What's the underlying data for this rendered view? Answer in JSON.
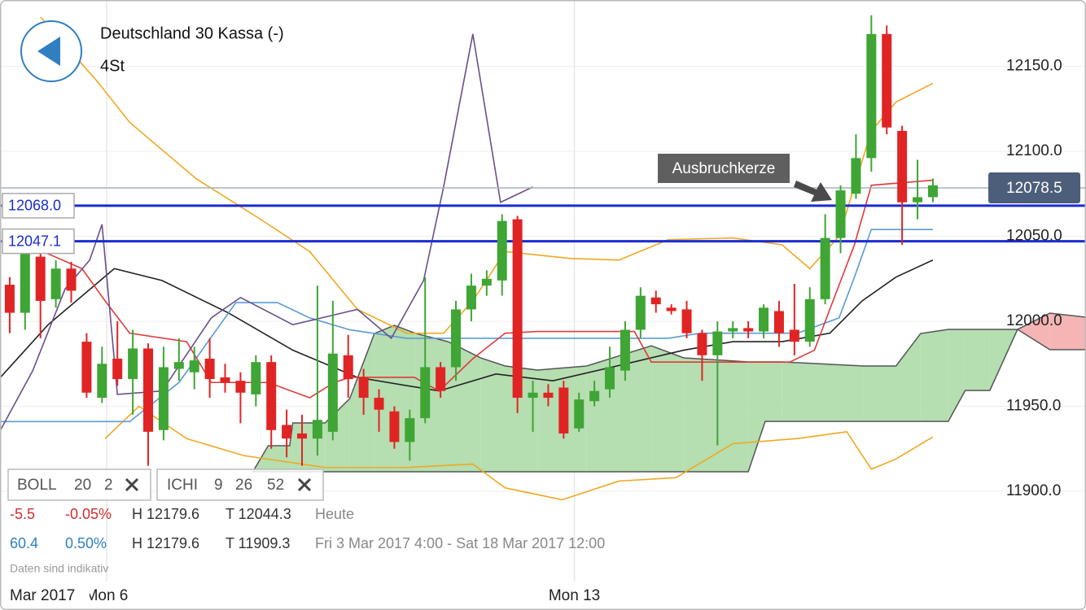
{
  "header": {
    "title": "Deutschland 30 Kassa (-)",
    "interval": "4St"
  },
  "chart_data": {
    "type": "candlestick",
    "up_color": "#3fa535",
    "down_color": "#e02424",
    "xlim": [
      -0.63,
      69.95
    ],
    "ylim": [
      11846.9,
      12189
    ],
    "grid": true,
    "yticks": [
      {
        "value": 11900,
        "label": "11900.0"
      },
      {
        "value": 11950,
        "label": "11950.0"
      },
      {
        "value": 12000,
        "label": "12000.0"
      },
      {
        "value": 12050,
        "label": "12050.0"
      },
      {
        "value": 12100,
        "label": "12100.0"
      },
      {
        "value": 12150,
        "label": "12150.0"
      }
    ],
    "xticks": [
      {
        "value": 6.3,
        "label": "Mon 6"
      },
      {
        "value": 36.7,
        "label": "Mon 13"
      }
    ],
    "open": [
      12021.5,
      12005,
      12038,
      12013,
      12031,
      11988,
      11955,
      11978,
      11966,
      11984,
      11936,
      11972,
      11970,
      11978,
      11967,
      11965,
      11957,
      11976,
      11939,
      11934,
      11931,
      11935,
      11980,
      11967,
      11955,
      11947,
      11929,
      11943,
      11973,
      11973,
      12007,
      12021,
      12024,
      12060,
      11955,
      11958,
      11961,
      11937,
      11953,
      11960,
      11971,
      11995,
      12014,
      12008,
      12007,
      11993,
      11980,
      11994,
      11996,
      11994,
      12006,
      11995,
      11988,
      12013,
      12049,
      12075,
      12096,
      12169,
      12112,
      12070,
      12073
    ],
    "high": [
      12026,
      12045,
      12045,
      12036,
      12035,
      11993,
      11985,
      12000,
      11995,
      11987,
      11985,
      11990,
      11985,
      11990,
      11975,
      11970,
      11980,
      11980,
      11948,
      11945,
      12021,
      12012,
      11992,
      11972,
      11960,
      11950,
      11948,
      12026,
      11976,
      12012,
      12028,
      12030,
      12063,
      12062,
      11965,
      11963,
      11965,
      11958,
      11965,
      11985,
      12000,
      12020,
      12018,
      12010,
      12012,
      11995,
      12000,
      12000,
      12000,
      12010,
      12012,
      12022,
      12020,
      12063,
      12080,
      12110,
      12180,
      12174,
      12115,
      12095,
      12084
    ],
    "low": [
      11993,
      11995,
      11990,
      12008,
      12011,
      11955,
      11952,
      11962,
      11945,
      11915,
      11930,
      11965,
      11960,
      11955,
      11958,
      11940,
      11950,
      11925,
      11920,
      11915,
      11921,
      11930,
      11955,
      11945,
      11935,
      11925,
      11918,
      11940,
      11955,
      11965,
      12000,
      12015,
      12015,
      11946,
      11935,
      11950,
      11931,
      11935,
      11950,
      11955,
      11965,
      11990,
      12005,
      12004,
      11990,
      11965,
      11927,
      11990,
      11990,
      11990,
      11985,
      11980,
      11985,
      12010,
      12040,
      12072,
      12088,
      12110,
      12045,
      12060,
      12070
    ],
    "close": [
      12005,
      12041,
      12012,
      12031,
      12018,
      11958,
      11975,
      11966,
      11984,
      11935,
      11973,
      11976,
      11977,
      11966,
      11964,
      11958,
      11976,
      11936,
      11931,
      11931,
      11942,
      11981,
      11966,
      11955,
      11948,
      11929,
      11943,
      11973,
      11959,
      12007,
      12021,
      12025,
      12059,
      11955,
      11958,
      11955,
      11934,
      11954,
      11959,
      11973,
      11995,
      12015,
      12010,
      12006,
      11993,
      11980,
      11994,
      11996,
      11994,
      12008,
      11993,
      11988,
      12013,
      12049,
      12077,
      12096,
      12169,
      12114,
      12070,
      12073,
      12080
    ],
    "cloud": {
      "up_color": "#b5deb1",
      "down_color": "#f5b5b5",
      "line_color": "#555555",
      "x": [
        15.8,
        16.8,
        18.2,
        18.4,
        20.5,
        22.1,
        23.7,
        25.0,
        26.4,
        28.5,
        30.6,
        32.2,
        34.3,
        37.5,
        41.7,
        43.8,
        48.0,
        49.1,
        50.2,
        55.5,
        57.6,
        59.2,
        61.0,
        62.1,
        63.7,
        65.5,
        67.6,
        69.95
      ],
      "span_a": [
        11911.5,
        11926.8,
        11926.8,
        11940.2,
        11940.2,
        11954.5,
        11992.8,
        11997.6,
        11992.8,
        11988.0,
        11978.5,
        11973.7,
        11971.3,
        11973.7,
        11985.6,
        11978.5,
        11976.1,
        11976.1,
        11976.1,
        11973.7,
        11973.7,
        11992.8,
        11995.2,
        11995.2,
        11995.2,
        11995.2,
        11983.3,
        11983.3
      ],
      "span_b": [
        11911.5,
        11911.5,
        11911.5,
        11911.5,
        11911.5,
        11911.5,
        11911.5,
        11911.5,
        11911.5,
        11911.5,
        11911.5,
        11911.5,
        11911.5,
        11911.5,
        11911.5,
        11911.5,
        11911.5,
        11941.1,
        11941.1,
        11941.1,
        11941.1,
        11941.1,
        11941.1,
        11959.3,
        11959.3,
        11995.2,
        12004.8,
        12002.4
      ]
    },
    "lines": [
      {
        "color": "#f0a820",
        "x": [
          2.0,
          5.7,
          7.8,
          12.1,
          16.3,
          19.5,
          22.6,
          25.8,
          28.2,
          30.1,
          32.2,
          36.4,
          39.6,
          42.8,
          47.0,
          50.2,
          52.0,
          53.9,
          56.0,
          57.6,
          60.0
        ],
        "values": [
          12179,
          12141,
          12117,
          12084,
          12060,
          12041,
          12007,
          11993,
          11993,
          12012,
          12041,
          12037,
          12036,
          12048,
          12049,
          12045,
          12031,
          12050,
          12112,
          12129,
          12140
        ]
      },
      {
        "color": "#f0a820",
        "x": [
          6.2,
          8.4,
          11.5,
          15.2,
          20.5,
          25.8,
          30.1,
          32.2,
          35.9,
          39.6,
          43.3,
          47.0,
          51.2,
          54.4,
          56.0,
          57.6,
          60.0
        ],
        "values": [
          11931,
          11950,
          11931,
          11921,
          11914,
          11914,
          11916,
          11902,
          11895,
          11906,
          11908,
          11928,
          11931,
          11935,
          11913,
          11919,
          11932
        ]
      },
      {
        "color": "#222222",
        "x": [
          -0.6,
          2.5,
          6.8,
          9.9,
          14.2,
          18.4,
          22.6,
          27.9,
          31.6,
          35.3,
          39.6,
          43.8,
          47.0,
          50.2,
          53.3,
          55.4,
          57.6,
          60.0
        ],
        "values": [
          11967,
          11998,
          12031,
          12024,
          12005,
          11983,
          11967,
          11959,
          11969,
          11965,
          11974,
          11983,
          11988,
          11988,
          11993,
          12012,
          12026,
          12036
        ]
      },
      {
        "color": "#5b9bd5",
        "x": [
          -0.6,
          7.8,
          11.0,
          14.7,
          17.4,
          19.5,
          22.1,
          25.8,
          33.2,
          42.8,
          44.9,
          51.2,
          53.9,
          54.9,
          56.0,
          60.0
        ],
        "values": [
          11941,
          11941,
          11964,
          12011,
          12011,
          12002,
          11995,
          11990,
          11990,
          11990,
          11993,
          11993,
          12002,
          12026,
          12054,
          12054
        ]
      },
      {
        "color": "#e03a3a",
        "x": [
          0.4,
          4.7,
          6.2,
          7.8,
          11.5,
          13.1,
          16.8,
          19.5,
          21.1,
          22.1,
          26.3,
          27.9,
          30.1,
          32.2,
          34.3,
          40.6,
          41.7,
          48.0,
          50.7,
          52.3,
          53.3,
          54.9,
          56.0,
          60.0
        ],
        "values": [
          12048,
          12031,
          12012,
          11993,
          11988,
          11964,
          11964,
          11955,
          11964,
          11967,
          11967,
          11959,
          11978,
          11993,
          11994,
          11994,
          11976,
          11976,
          11976,
          11983,
          12007,
          12045,
          12080,
          12083
        ]
      },
      {
        "color": "#6a4f8c",
        "x": [
          -0.6,
          1.5,
          3.6,
          5.2,
          6.0,
          7.0,
          9.9,
          13.1,
          15.0,
          18.4,
          22.6,
          24.8,
          26.9,
          28.2,
          30.1,
          31.9,
          34.0
        ],
        "values": [
          11936,
          11971,
          12019,
          12036,
          12057,
          11957,
          11959,
          12002,
          12014,
          11998,
          12007,
          11990,
          12024,
          12079,
          12169,
          12070,
          12079
        ]
      }
    ],
    "levels": [
      {
        "value": 12068.0,
        "label": "12068.0",
        "color": "#1a2cd0"
      },
      {
        "value": 12047.1,
        "label": "12047.1",
        "color": "#1a2cd0"
      }
    ],
    "last_price": {
      "value": 12078.5,
      "label": "12078.5",
      "color": "#4d5e7a"
    },
    "annotation": "Ausbruchkerze"
  },
  "indicators": [
    {
      "name": "BOLL",
      "params": [
        "20",
        "2"
      ]
    },
    {
      "name": "ICHI",
      "params": [
        "9",
        "26",
        "52"
      ]
    }
  ],
  "stats": [
    {
      "change": "-5.5",
      "percent": "-0.05%",
      "high": "H 12179.6",
      "low": "T 12044.3",
      "period": "Heute",
      "color": "#cf2e2e"
    },
    {
      "change": "60.4",
      "percent": "0.50%",
      "high": "H 12179.6",
      "low": "T 11909.3",
      "period": "Fri 3 Mar 2017 4:00 - Sat 18 Mar 2017 12:00",
      "color": "#2f7fc1"
    }
  ],
  "footer": {
    "disclaimer": "Daten sind indikativ",
    "month": "Mar 2017"
  }
}
